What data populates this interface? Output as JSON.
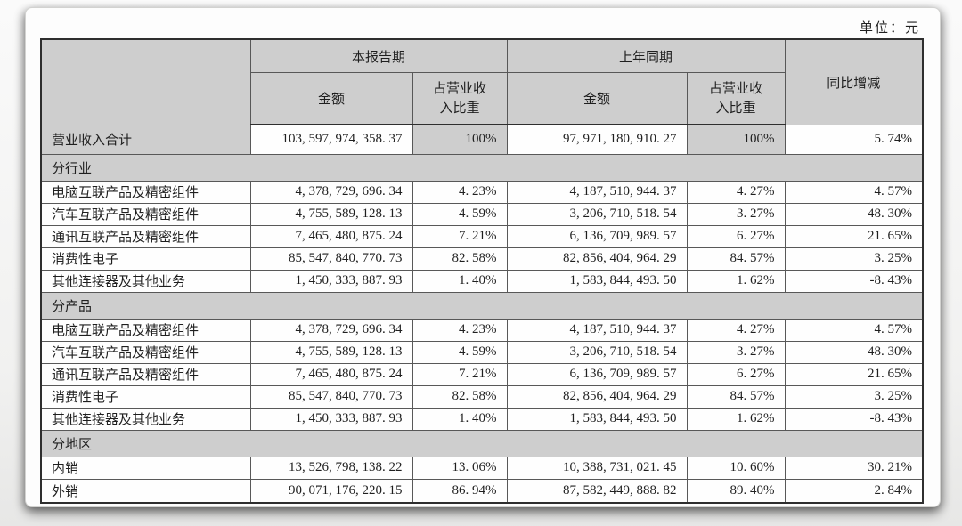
{
  "page": {
    "unit_label": "单位：元"
  },
  "table": {
    "header": {
      "current_period": "本报告期",
      "prior_period": "上年同期",
      "amount": "金额",
      "share": "占营业收入比重",
      "yoy": "同比增减"
    },
    "total_row": {
      "label": "营业收入合计",
      "cur_amount": "103,597,974,358.37",
      "cur_share": "100%",
      "prior_amount": "97,971,180,910.27",
      "prior_share": "100%",
      "yoy": "5.74%"
    },
    "sections": [
      {
        "title": "分行业",
        "rows": [
          {
            "label": "电脑互联产品及精密组件",
            "cur_amount": "4,378,729,696.34",
            "cur_share": "4.23%",
            "prior_amount": "4,187,510,944.37",
            "prior_share": "4.27%",
            "yoy": "4.57%"
          },
          {
            "label": "汽车互联产品及精密组件",
            "cur_amount": "4,755,589,128.13",
            "cur_share": "4.59%",
            "prior_amount": "3,206,710,518.54",
            "prior_share": "3.27%",
            "yoy": "48.30%"
          },
          {
            "label": "通讯互联产品及精密组件",
            "cur_amount": "7,465,480,875.24",
            "cur_share": "7.21%",
            "prior_amount": "6,136,709,989.57",
            "prior_share": "6.27%",
            "yoy": "21.65%"
          },
          {
            "label": "消费性电子",
            "cur_amount": "85,547,840,770.73",
            "cur_share": "82.58%",
            "prior_amount": "82,856,404,964.29",
            "prior_share": "84.57%",
            "yoy": "3.25%"
          },
          {
            "label": "其他连接器及其他业务",
            "cur_amount": "1,450,333,887.93",
            "cur_share": "1.40%",
            "prior_amount": "1,583,844,493.50",
            "prior_share": "1.62%",
            "yoy": "-8.43%"
          }
        ]
      },
      {
        "title": "分产品",
        "rows": [
          {
            "label": "电脑互联产品及精密组件",
            "cur_amount": "4,378,729,696.34",
            "cur_share": "4.23%",
            "prior_amount": "4,187,510,944.37",
            "prior_share": "4.27%",
            "yoy": "4.57%"
          },
          {
            "label": "汽车互联产品及精密组件",
            "cur_amount": "4,755,589,128.13",
            "cur_share": "4.59%",
            "prior_amount": "3,206,710,518.54",
            "prior_share": "3.27%",
            "yoy": "48.30%"
          },
          {
            "label": "通讯互联产品及精密组件",
            "cur_amount": "7,465,480,875.24",
            "cur_share": "7.21%",
            "prior_amount": "6,136,709,989.57",
            "prior_share": "6.27%",
            "yoy": "21.65%"
          },
          {
            "label": "消费性电子",
            "cur_amount": "85,547,840,770.73",
            "cur_share": "82.58%",
            "prior_amount": "82,856,404,964.29",
            "prior_share": "84.57%",
            "yoy": "3.25%"
          },
          {
            "label": "其他连接器及其他业务",
            "cur_amount": "1,450,333,887.93",
            "cur_share": "1.40%",
            "prior_amount": "1,583,844,493.50",
            "prior_share": "1.62%",
            "yoy": "-8.43%"
          }
        ]
      },
      {
        "title": "分地区",
        "rows": [
          {
            "label": "内销",
            "cur_amount": "13,526,798,138.22",
            "cur_share": "13.06%",
            "prior_amount": "10,388,731,021.45",
            "prior_share": "10.60%",
            "yoy": "30.21%"
          },
          {
            "label": "外销",
            "cur_amount": "90,071,176,220.15",
            "cur_share": "86.94%",
            "prior_amount": "87,582,449,888.82",
            "prior_share": "89.40%",
            "yoy": "2.84%"
          }
        ]
      }
    ]
  }
}
